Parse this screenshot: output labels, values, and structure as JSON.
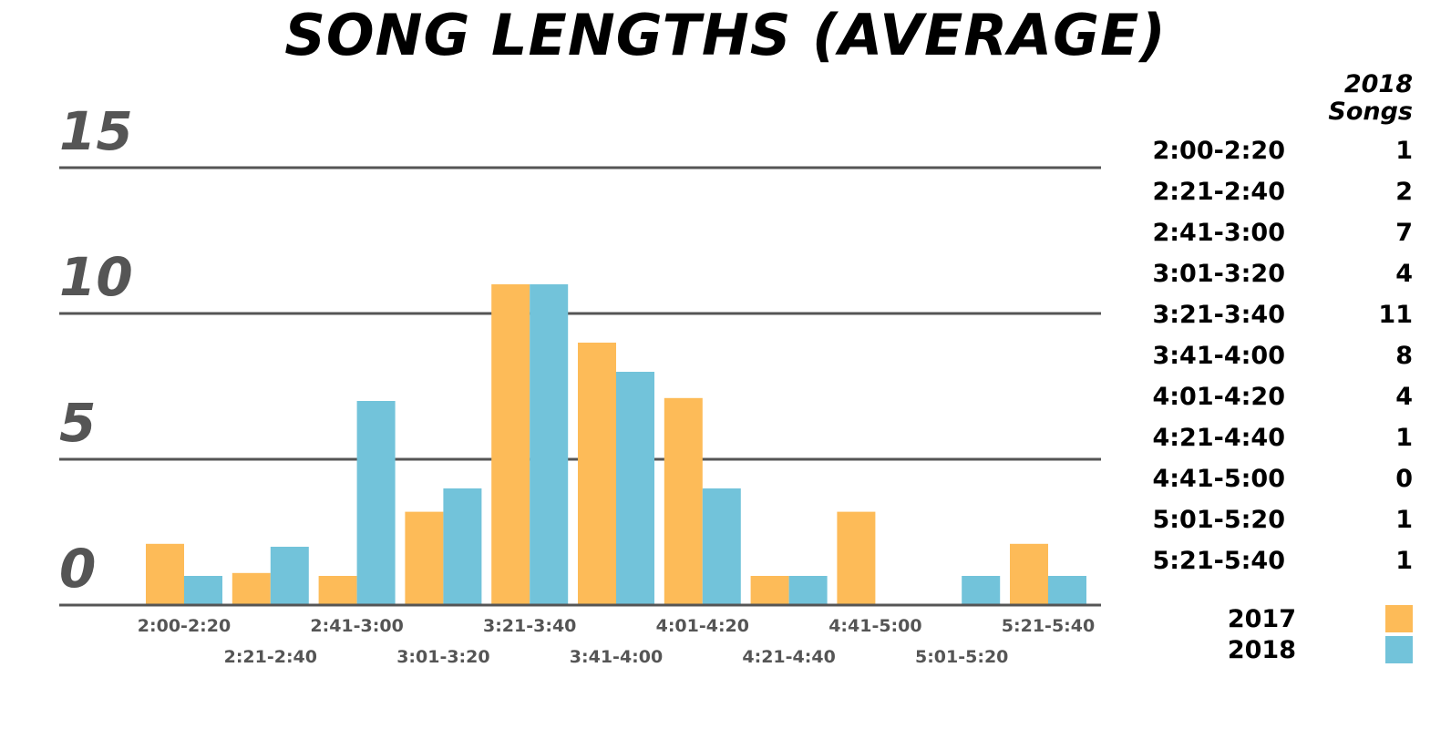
{
  "title": "SONG LENGTHS (AVERAGE)",
  "table": {
    "header_line1": "2018",
    "header_line2": "Songs",
    "rows": [
      {
        "range": "2:00-2:20",
        "count": "1"
      },
      {
        "range": "2:21-2:40",
        "count": "2"
      },
      {
        "range": "2:41-3:00",
        "count": "7"
      },
      {
        "range": "3:01-3:20",
        "count": "4"
      },
      {
        "range": "3:21-3:40",
        "count": "11"
      },
      {
        "range": "3:41-4:00",
        "count": "8"
      },
      {
        "range": "4:01-4:20",
        "count": "4"
      },
      {
        "range": "4:21-4:40",
        "count": "1"
      },
      {
        "range": "4:41-5:00",
        "count": "0"
      },
      {
        "range": "5:01-5:20",
        "count": "1"
      },
      {
        "range": "5:21-5:40",
        "count": "1"
      }
    ]
  },
  "legend": [
    {
      "label": "2017",
      "color": "#FDBB58"
    },
    {
      "label": "2018",
      "color": "#72C3DA"
    }
  ],
  "chart_data": {
    "type": "bar",
    "title": "SONG LENGTHS (AVERAGE)",
    "xlabel": "",
    "ylabel": "",
    "ylim": [
      0,
      15
    ],
    "yticks": [
      0,
      5,
      10,
      15
    ],
    "grid": true,
    "legend_position": "right",
    "categories": [
      "2:00-2:20",
      "2:21-2:40",
      "2:41-3:00",
      "3:01-3:20",
      "3:21-3:40",
      "3:41-4:00",
      "4:01-4:20",
      "4:21-4:40",
      "4:41-5:00",
      "5:01-5:20",
      "5:21-5:40"
    ],
    "series": [
      {
        "name": "2017",
        "color": "#FDBB58",
        "values": [
          2.1,
          1.1,
          1,
          3.2,
          11,
          9,
          7.1,
          1,
          3.2,
          0,
          2.1
        ]
      },
      {
        "name": "2018",
        "color": "#72C3DA",
        "values": [
          1,
          2,
          7,
          4,
          11,
          8,
          4,
          1,
          0,
          1,
          1
        ]
      }
    ]
  }
}
